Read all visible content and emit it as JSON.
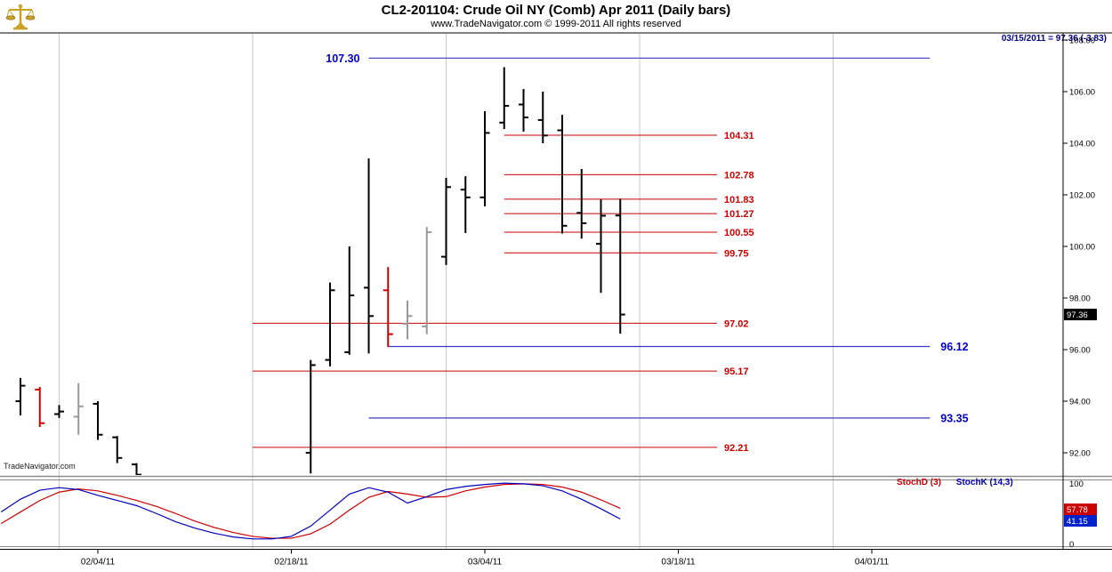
{
  "header": {
    "title": "CL2-201104:  Crude Oil NY (Comb) Apr 2011  (Daily bars)",
    "subtitle": "www.TradeNavigator.com © 1999-2011 All rights reserved",
    "quote_line": "03/15/2011 = 97.36 (-3.83)",
    "logo": "scales-icon"
  },
  "watermark": "TradeNavigator.com",
  "chart_data": {
    "type": "bar",
    "subtype": "ohlc-daily-bars",
    "title": "CL2-201104: Crude Oil NY (Comb) Apr 2011 (Daily bars)",
    "xlabel": "",
    "ylabel": "",
    "ylim": [
      90.8,
      108.3
    ],
    "grid": "vertical-only",
    "y_axis": {
      "ticks": [
        108,
        106,
        104,
        102,
        100,
        98,
        96,
        94,
        92
      ]
    },
    "x_axis": {
      "tick_labels": [
        "02/04/11",
        "02/18/11",
        "03/04/11",
        "03/18/11",
        "04/01/11"
      ],
      "gridline_dates": [
        "02/02/11",
        "02/16/11",
        "03/02/11",
        "03/16/11",
        "03/30/11"
      ]
    },
    "bars": [
      {
        "date": "01/31/11",
        "o": 94.0,
        "h": 94.9,
        "l": 93.45,
        "c": 94.6,
        "color": "black"
      },
      {
        "date": "02/01/11",
        "o": 94.45,
        "h": 94.55,
        "l": 93.0,
        "c": 93.15,
        "color": "red"
      },
      {
        "date": "02/02/11",
        "o": 93.5,
        "h": 93.85,
        "l": 93.35,
        "c": 93.6,
        "color": "black"
      },
      {
        "date": "02/03/11",
        "o": 93.4,
        "h": 94.7,
        "l": 92.7,
        "c": 93.8,
        "color": "gray"
      },
      {
        "date": "02/04/11",
        "o": 93.9,
        "h": 94.0,
        "l": 92.5,
        "c": 92.7,
        "color": "black"
      },
      {
        "date": "02/07/11",
        "o": 92.6,
        "h": 92.65,
        "l": 91.6,
        "c": 91.8,
        "color": "black"
      },
      {
        "date": "02/08/11",
        "o": 91.55,
        "h": 91.6,
        "l": 91.0,
        "c": 91.15,
        "color": "black"
      },
      {
        "date": "02/21/11",
        "o": 92.0,
        "h": 95.6,
        "l": 91.2,
        "c": 95.4,
        "color": "black"
      },
      {
        "date": "02/22/11",
        "o": 95.6,
        "h": 98.6,
        "l": 95.35,
        "c": 98.3,
        "color": "black"
      },
      {
        "date": "02/23/11",
        "o": 95.9,
        "h": 100.0,
        "l": 95.8,
        "c": 98.1,
        "color": "black"
      },
      {
        "date": "02/24/11",
        "o": 98.4,
        "h": 103.41,
        "l": 95.85,
        "c": 97.3,
        "color": "black"
      },
      {
        "date": "02/25/11",
        "o": 98.3,
        "h": 99.2,
        "l": 96.1,
        "c": 96.6,
        "color": "red"
      },
      {
        "date": "02/28/11",
        "o": 97.0,
        "h": 97.9,
        "l": 96.4,
        "c": 97.3,
        "color": "gray"
      },
      {
        "date": "03/01/11",
        "o": 96.9,
        "h": 100.75,
        "l": 96.6,
        "c": 100.55,
        "color": "gray"
      },
      {
        "date": "03/02/11",
        "o": 99.6,
        "h": 102.66,
        "l": 99.28,
        "c": 102.3,
        "color": "black"
      },
      {
        "date": "03/03/11",
        "o": 102.2,
        "h": 102.72,
        "l": 100.52,
        "c": 101.9,
        "color": "black"
      },
      {
        "date": "03/04/11",
        "o": 101.9,
        "h": 105.24,
        "l": 101.55,
        "c": 104.4,
        "color": "black"
      },
      {
        "date": "03/07/11",
        "o": 104.8,
        "h": 106.95,
        "l": 104.55,
        "c": 105.45,
        "color": "black"
      },
      {
        "date": "03/08/11",
        "o": 105.5,
        "h": 106.1,
        "l": 104.45,
        "c": 105.0,
        "color": "black"
      },
      {
        "date": "03/09/11",
        "o": 104.9,
        "h": 106.0,
        "l": 104.0,
        "c": 104.3,
        "color": "black"
      },
      {
        "date": "03/10/11",
        "o": 104.5,
        "h": 105.1,
        "l": 100.5,
        "c": 100.8,
        "color": "black"
      },
      {
        "date": "03/11/11",
        "o": 101.3,
        "h": 103.0,
        "l": 100.3,
        "c": 100.9,
        "color": "black"
      },
      {
        "date": "03/14/11",
        "o": 100.1,
        "h": 101.83,
        "l": 98.2,
        "c": 101.19,
        "color": "black"
      },
      {
        "date": "03/15/11",
        "o": 101.2,
        "h": 101.85,
        "l": 96.62,
        "c": 97.36,
        "color": "black"
      }
    ],
    "last_price": {
      "value": 97.36,
      "label": "97.36",
      "bg": "#000000"
    },
    "levels": {
      "red": [
        {
          "price": 104.31,
          "label": "104.31",
          "from": "03/07/11",
          "to": "03/22/11"
        },
        {
          "price": 102.78,
          "label": "102.78",
          "from": "03/07/11",
          "to": "03/22/11"
        },
        {
          "price": 101.83,
          "label": "101.83",
          "from": "03/07/11",
          "to": "03/22/11"
        },
        {
          "price": 101.27,
          "label": "101.27",
          "from": "03/07/11",
          "to": "03/22/11"
        },
        {
          "price": 100.55,
          "label": "100.55",
          "from": "03/07/11",
          "to": "03/22/11"
        },
        {
          "price": 99.75,
          "label": "99.75",
          "from": "03/07/11",
          "to": "03/22/11"
        },
        {
          "price": 97.02,
          "label": "97.02",
          "from": "02/16/11",
          "to": "03/22/11"
        },
        {
          "price": 95.17,
          "label": "95.17",
          "from": "02/16/11",
          "to": "03/22/11"
        },
        {
          "price": 92.21,
          "label": "92.21",
          "from": "02/16/11",
          "to": "03/22/11"
        }
      ],
      "blue": [
        {
          "price": 107.3,
          "label": "107.30",
          "from": "02/24/11",
          "to": "04/06/11",
          "label_side": "left"
        },
        {
          "price": 96.12,
          "label": "96.12",
          "from": "02/25/11",
          "to": "04/06/11",
          "label_side": "right"
        },
        {
          "price": 93.35,
          "label": "93.35",
          "from": "02/24/11",
          "to": "04/06/11",
          "label_side": "right"
        }
      ]
    },
    "stochastic": {
      "legend": [
        {
          "label": "StochD (3)",
          "color": "#cc0000"
        },
        {
          "label": "StochK (14,3)",
          "color": "#0000bb"
        }
      ],
      "scale": {
        "top": "100",
        "bottom": "0"
      },
      "sessions": [
        "01/28/11",
        "01/31/11",
        "02/01/11",
        "02/02/11",
        "02/03/11",
        "02/04/11",
        "02/07/11",
        "02/08/11",
        "02/09/11",
        "02/10/11",
        "02/11/11",
        "02/14/11",
        "02/15/11",
        "02/16/11",
        "02/17/11",
        "02/18/11",
        "02/21/11",
        "02/22/11",
        "02/23/11",
        "02/24/11",
        "02/25/11",
        "02/28/11",
        "03/01/11",
        "03/02/11",
        "03/03/11",
        "03/04/11",
        "03/07/11",
        "03/08/11",
        "03/09/11",
        "03/10/11",
        "03/11/11",
        "03/14/11",
        "03/15/11"
      ],
      "k": [
        52,
        72,
        86,
        90,
        87,
        78,
        70,
        62,
        50,
        37,
        27,
        19,
        13,
        10,
        10,
        14,
        30,
        55,
        80,
        90,
        83,
        66,
        76,
        87,
        92,
        95,
        97,
        96,
        93,
        85,
        72,
        57,
        41.15
      ],
      "d": [
        34,
        52,
        70,
        83,
        88,
        85,
        78,
        70,
        61,
        50,
        38,
        28,
        20,
        14,
        11,
        11,
        18,
        33,
        55,
        75,
        84,
        80,
        75,
        76,
        85,
        91,
        95,
        96,
        95,
        91,
        83,
        71,
        57.78
      ],
      "last_values": [
        {
          "text": "57.78",
          "bg": "#cc0000"
        },
        {
          "text": "41.15",
          "bg": "#0022cc"
        }
      ]
    },
    "colors": {
      "bar_black": "#000000",
      "bar_red": "#cc0000",
      "bar_gray": "#999999",
      "level_red": "#cc0000",
      "level_blue": "#3a3ac0",
      "label_blue": "#0000cc",
      "stoch_k": "#0000bb",
      "stoch_d": "#cc0000",
      "grid": "#c9c9c9",
      "quote_text": "#00008b"
    }
  }
}
